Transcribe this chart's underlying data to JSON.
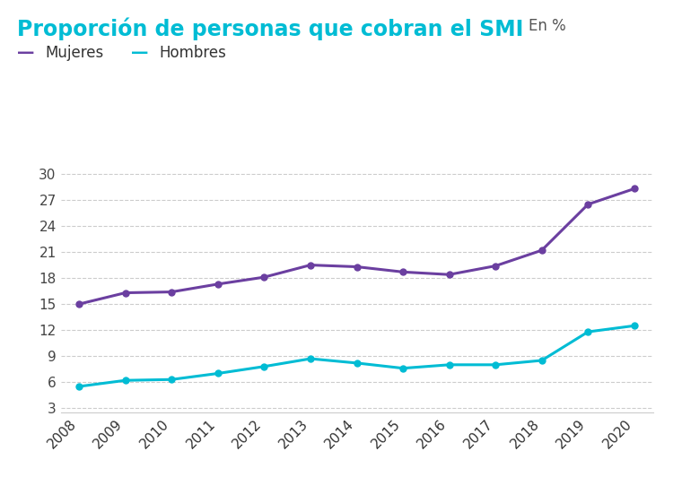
{
  "title_main": "Proporción de personas que cobran el SMI",
  "title_suffix": "En %",
  "years": [
    2008,
    2009,
    2010,
    2011,
    2012,
    2013,
    2014,
    2015,
    2016,
    2017,
    2018,
    2019,
    2020
  ],
  "mujeres": [
    15.0,
    16.3,
    16.4,
    17.3,
    18.1,
    19.5,
    19.3,
    18.7,
    18.4,
    19.4,
    21.2,
    26.5,
    28.3
  ],
  "hombres": [
    5.5,
    6.2,
    6.3,
    7.0,
    7.8,
    8.7,
    8.2,
    7.6,
    8.0,
    8.0,
    8.5,
    11.8,
    12.5
  ],
  "color_mujeres": "#6b3fa0",
  "color_hombres": "#00bcd4",
  "color_title_main": "#00bcd4",
  "color_title_suffix": "#555555",
  "yticks": [
    3,
    6,
    9,
    12,
    15,
    18,
    21,
    24,
    27,
    30
  ],
  "ylim": [
    2.5,
    31.5
  ],
  "xlim": [
    2007.6,
    2020.4
  ],
  "legend_mujeres": "Mujeres",
  "legend_hombres": "Hombres",
  "background_color": "#ffffff",
  "grid_color": "#cccccc",
  "marker": "o",
  "markersize": 5,
  "linewidth": 2.2,
  "title_fontsize": 17,
  "suffix_fontsize": 12,
  "legend_fontsize": 12,
  "tick_fontsize": 11
}
